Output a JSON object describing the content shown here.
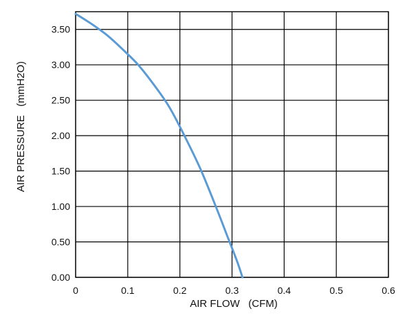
{
  "chart_data": {
    "type": "line",
    "title": "",
    "xlabel": "AIR FLOW   (CFM)",
    "ylabel": "AIR PRESSURE   (mmH2O)",
    "xlim": [
      0,
      0.6
    ],
    "ylim": [
      0,
      3.75
    ],
    "x_ticks": [
      "0",
      "0.1",
      "0.2",
      "0.3",
      "0.4",
      "0.5",
      "0.6"
    ],
    "y_ticks": [
      "0.00",
      "0.50",
      "1.00",
      "1.50",
      "2.00",
      "2.50",
      "3.00",
      "3.50"
    ],
    "grid": true,
    "series": [
      {
        "color": "#5b9bd5",
        "x": [
          0.0,
          0.03,
          0.06,
          0.09,
          0.12,
          0.15,
          0.18,
          0.21,
          0.24,
          0.27,
          0.29,
          0.31,
          0.32
        ],
        "y": [
          3.72,
          3.58,
          3.42,
          3.22,
          3.0,
          2.72,
          2.4,
          1.98,
          1.52,
          0.98,
          0.6,
          0.22,
          0.0
        ]
      }
    ]
  }
}
